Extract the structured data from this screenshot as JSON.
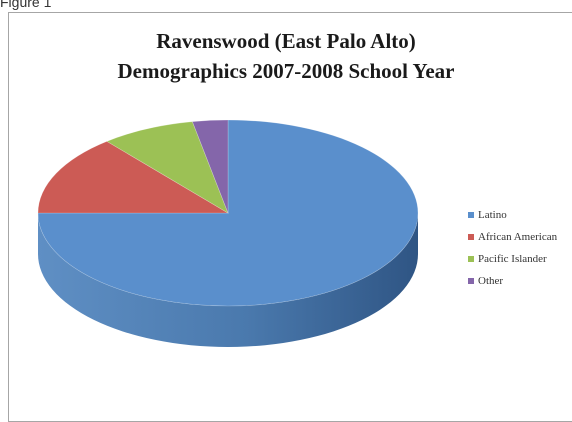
{
  "figure_caption": "Figure 1",
  "chart_data": {
    "type": "pie",
    "title_line1": "Ravenswood (East Palo Alto)",
    "title_line2": "Demographics  2007-2008 School Year",
    "three_d": true,
    "legend_position": "right",
    "slices": [
      {
        "label": "Latino",
        "value": 75,
        "color": "#5a8fcc"
      },
      {
        "label": "African American",
        "value": 14,
        "color": "#cc5b55"
      },
      {
        "label": "Pacific Islander",
        "value": 8,
        "color": "#9cc155"
      },
      {
        "label": "Other",
        "value": 3,
        "color": "#8466aa"
      }
    ]
  }
}
